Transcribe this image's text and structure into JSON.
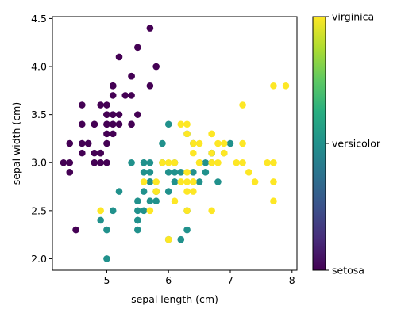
{
  "chart_data": {
    "type": "scatter",
    "xlabel": "sepal length (cm)",
    "ylabel": "sepal width (cm)",
    "xlim": [
      4.12,
      8.08
    ],
    "ylim": [
      1.88,
      4.52
    ],
    "xticks": [
      5,
      6,
      7,
      8
    ],
    "yticks": [
      2.0,
      2.5,
      3.0,
      3.5,
      4.0,
      4.5
    ],
    "grid": false,
    "colormap": "viridis",
    "colorbar": {
      "ticks": [
        {
          "value": 0,
          "label": "setosa"
        },
        {
          "value": 1,
          "label": "versicolor"
        },
        {
          "value": 2,
          "label": "virginica"
        }
      ]
    },
    "series": [
      {
        "class": 0,
        "color": "#440154",
        "x": [
          5.1,
          4.9,
          4.7,
          4.6,
          5.0,
          5.4,
          4.6,
          5.0,
          4.4,
          4.9,
          5.4,
          4.8,
          4.8,
          4.3,
          5.8,
          5.7,
          5.4,
          5.1,
          5.7,
          5.1,
          5.4,
          5.1,
          4.6,
          5.1,
          4.8,
          5.0,
          5.0,
          5.2,
          5.2,
          4.7,
          4.8,
          5.4,
          5.2,
          5.5,
          4.9,
          5.0,
          5.5,
          4.9,
          4.4,
          5.1,
          5.0,
          4.5,
          4.4,
          5.0,
          5.1,
          4.8,
          5.1,
          4.6,
          5.3,
          5.0
        ],
        "y": [
          3.5,
          3.0,
          3.2,
          3.1,
          3.6,
          3.9,
          3.4,
          3.4,
          2.9,
          3.1,
          3.7,
          3.4,
          3.0,
          3.0,
          4.0,
          4.4,
          3.9,
          3.5,
          3.8,
          3.8,
          3.4,
          3.7,
          3.6,
          3.3,
          3.4,
          3.0,
          3.4,
          3.5,
          3.4,
          3.2,
          3.1,
          3.4,
          4.1,
          4.2,
          3.1,
          3.2,
          3.5,
          3.6,
          3.0,
          3.4,
          3.5,
          2.3,
          3.2,
          3.5,
          3.8,
          3.0,
          3.8,
          3.2,
          3.7,
          3.3
        ]
      },
      {
        "class": 1,
        "color": "#21918c",
        "x": [
          7.0,
          6.4,
          6.9,
          5.5,
          6.5,
          5.7,
          6.3,
          4.9,
          6.6,
          5.2,
          5.0,
          5.9,
          6.0,
          6.1,
          5.6,
          6.7,
          5.6,
          5.8,
          6.2,
          5.6,
          5.9,
          6.1,
          6.3,
          6.1,
          6.4,
          6.6,
          6.8,
          6.7,
          6.0,
          5.7,
          5.5,
          5.5,
          5.8,
          6.0,
          5.4,
          6.0,
          6.7,
          6.3,
          5.6,
          5.5,
          5.5,
          6.1,
          5.8,
          5.0,
          5.6,
          5.7,
          5.7,
          6.2,
          5.1,
          5.7
        ],
        "y": [
          3.2,
          3.2,
          3.1,
          2.3,
          2.8,
          2.8,
          3.3,
          2.4,
          2.9,
          2.7,
          2.0,
          3.0,
          2.2,
          2.9,
          2.9,
          3.1,
          3.0,
          2.7,
          2.2,
          2.5,
          3.2,
          2.8,
          2.5,
          2.8,
          2.9,
          3.0,
          2.8,
          3.0,
          2.9,
          2.6,
          2.4,
          2.4,
          2.7,
          2.7,
          3.0,
          3.4,
          3.1,
          2.3,
          3.0,
          2.5,
          2.6,
          3.0,
          2.6,
          2.3,
          2.7,
          3.0,
          2.9,
          2.9,
          2.5,
          2.8
        ]
      },
      {
        "class": 2,
        "color": "#fde725",
        "x": [
          6.3,
          5.8,
          7.1,
          6.3,
          6.5,
          7.6,
          4.9,
          7.3,
          6.7,
          7.2,
          6.5,
          6.4,
          6.8,
          5.7,
          5.8,
          6.4,
          6.5,
          7.7,
          7.7,
          6.0,
          6.9,
          5.6,
          7.7,
          6.3,
          6.7,
          7.2,
          6.2,
          6.1,
          6.4,
          7.2,
          7.4,
          7.9,
          6.4,
          6.3,
          6.1,
          7.7,
          6.3,
          6.4,
          6.0,
          6.9,
          6.7,
          6.9,
          5.8,
          6.8,
          6.7,
          6.7,
          6.3,
          6.5,
          6.2,
          5.9
        ],
        "y": [
          3.3,
          2.7,
          3.0,
          2.9,
          3.0,
          3.0,
          2.5,
          2.9,
          2.5,
          3.6,
          3.2,
          2.7,
          3.0,
          2.5,
          2.8,
          3.2,
          3.0,
          3.8,
          2.6,
          2.2,
          3.2,
          2.8,
          2.8,
          2.7,
          3.3,
          3.2,
          2.8,
          3.0,
          2.8,
          3.0,
          2.8,
          3.8,
          2.8,
          2.8,
          2.6,
          3.0,
          3.4,
          3.1,
          3.0,
          3.1,
          3.1,
          3.1,
          2.7,
          3.2,
          3.3,
          3.0,
          2.5,
          3.0,
          3.4,
          3.0
        ]
      }
    ]
  }
}
